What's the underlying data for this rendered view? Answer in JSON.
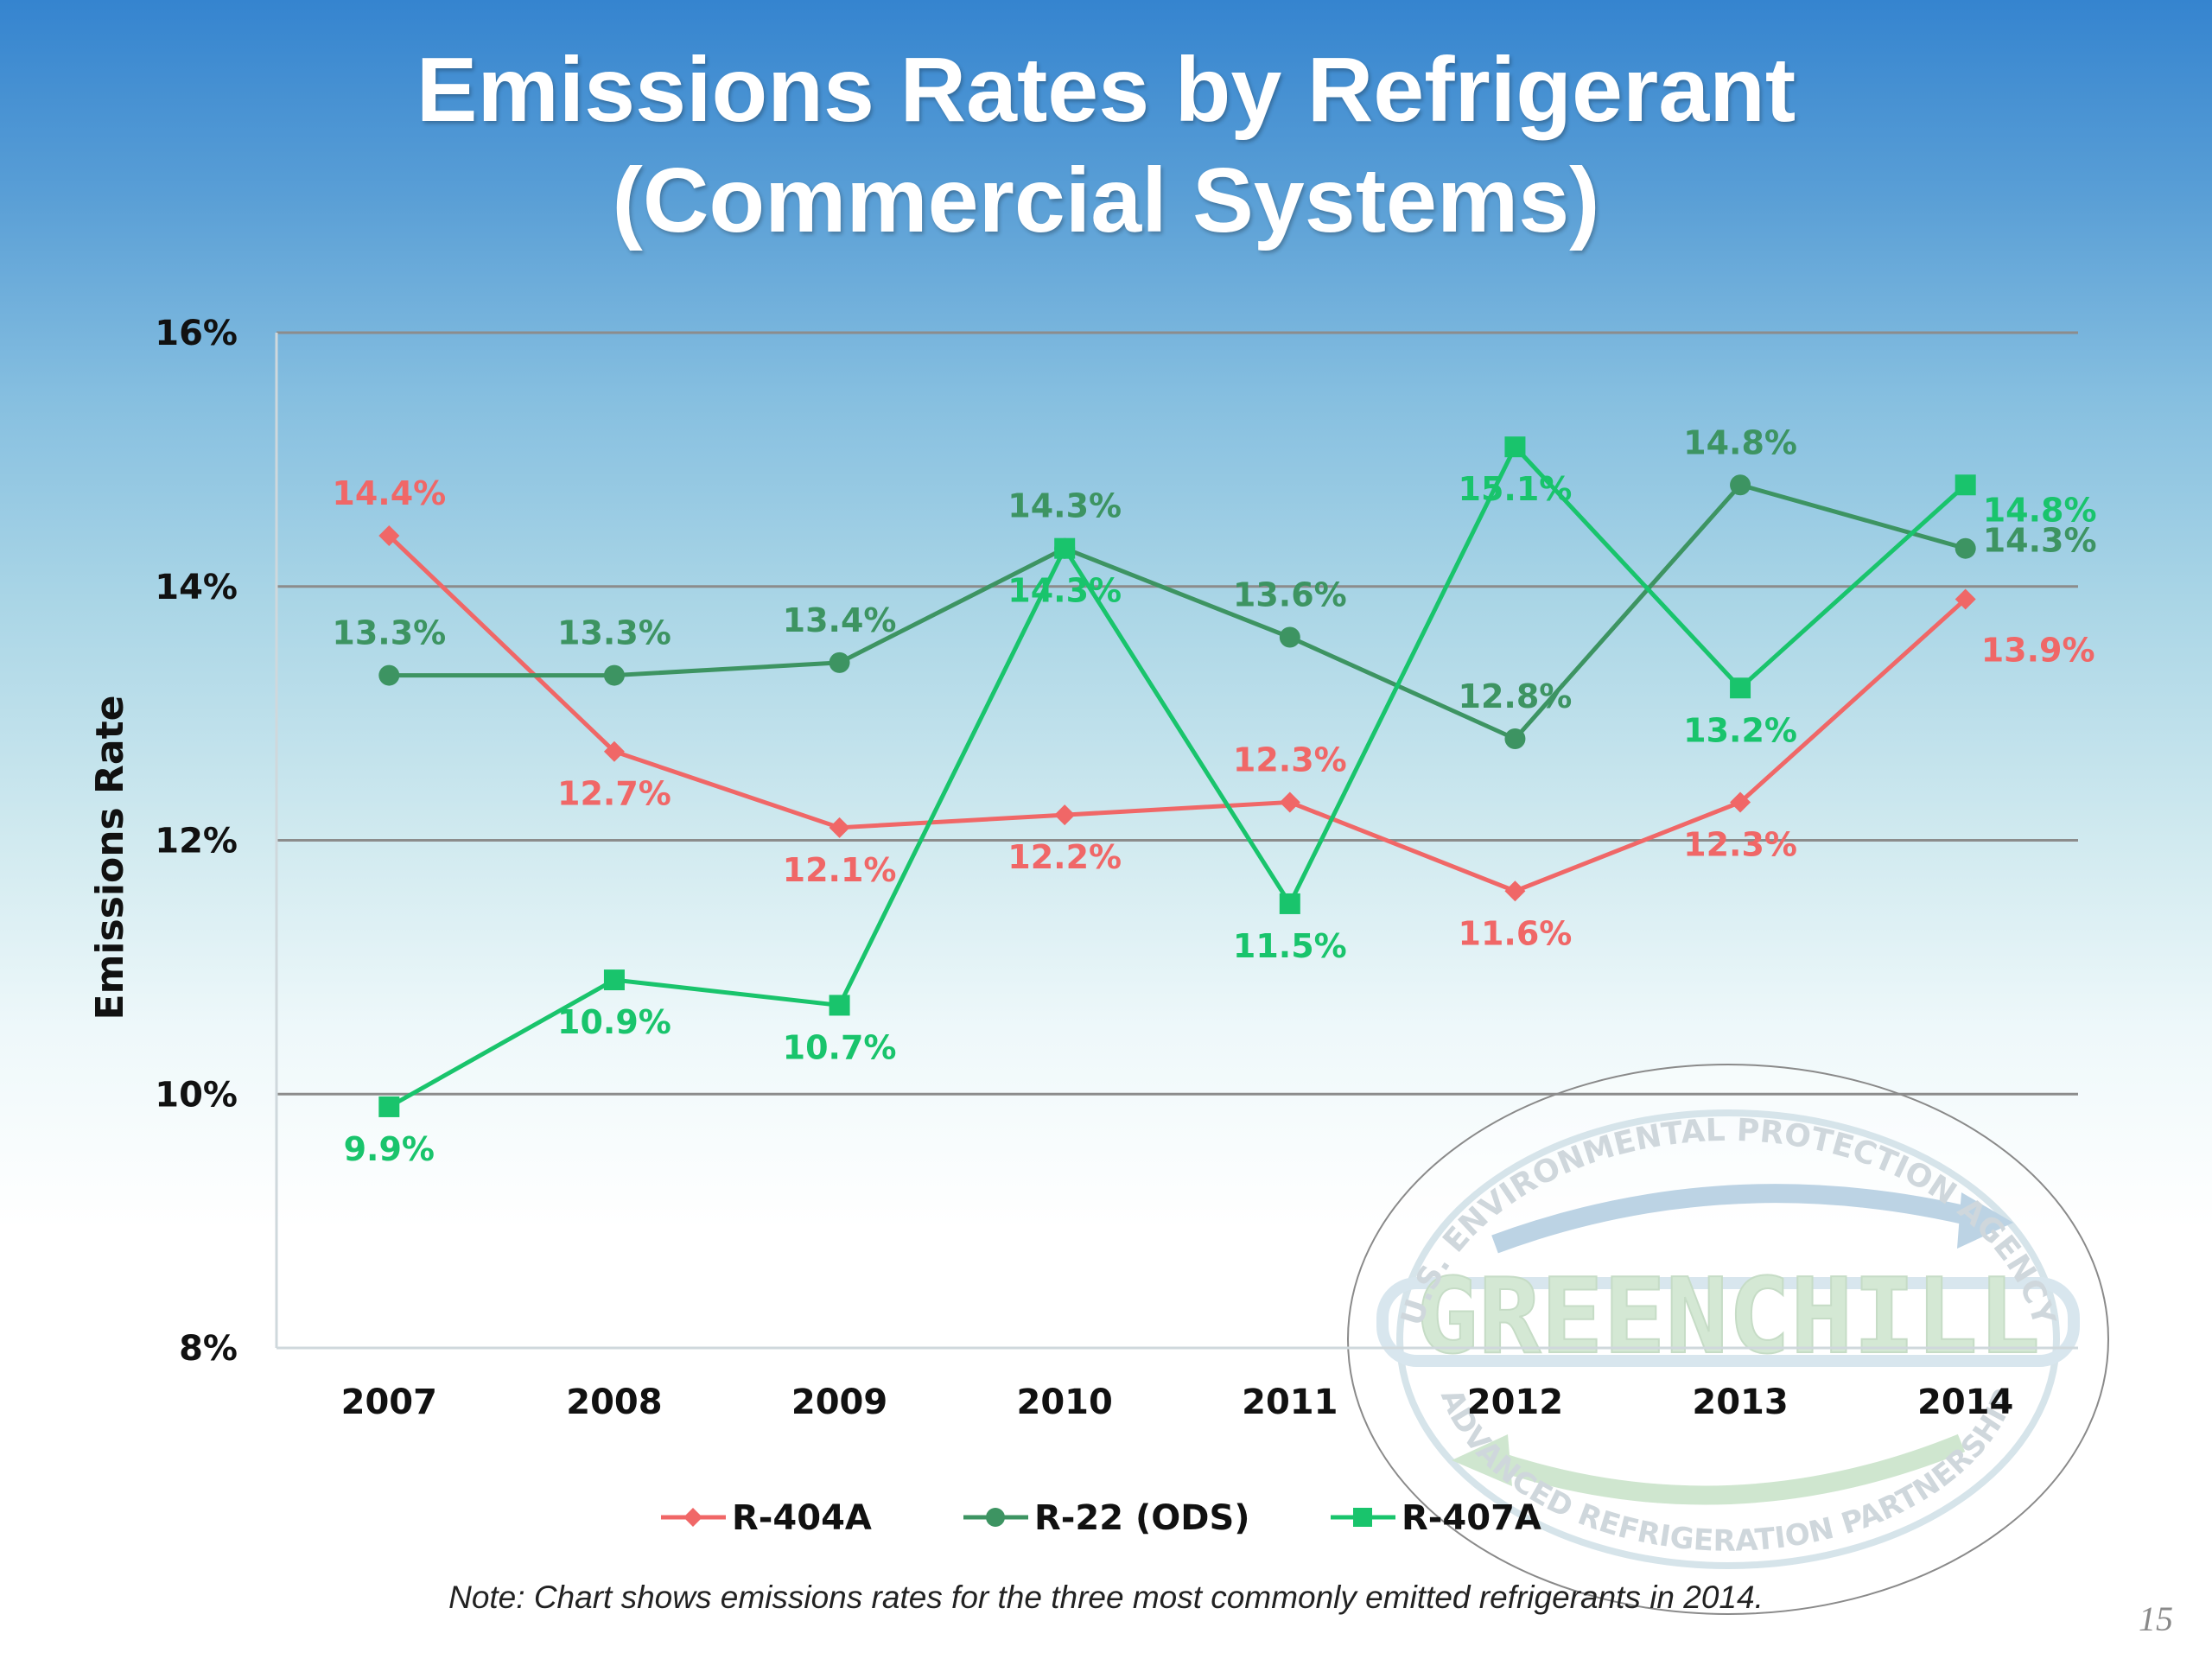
{
  "slide": {
    "title_line1": "Emissions Rates by Refrigerant",
    "title_line2": "(Commercial Systems)",
    "note": "Note: Chart shows emissions rates for the three most commonly emitted refrigerants in 2014.",
    "page_number": "15"
  },
  "watermark": {
    "top_arc_text": "U.S. ENVIRONMENTAL PROTECTION AGENCY",
    "logo_text": "GREENCHILL",
    "bottom_arc_text": "ADVANCED REFRIGERATION PARTNERSHIP"
  },
  "chart_data": {
    "type": "line",
    "title": "",
    "xlabel": "",
    "ylabel": "Emissions Rate",
    "categories": [
      "2007",
      "2008",
      "2009",
      "2010",
      "2011",
      "2012",
      "2013",
      "2014"
    ],
    "ylim": [
      8,
      16
    ],
    "yticks": [
      8,
      10,
      12,
      14,
      16
    ],
    "ytick_labels": [
      "8%",
      "10%",
      "12%",
      "14%",
      "16%"
    ],
    "grid": true,
    "legend_position": "bottom",
    "series": [
      {
        "name": "R-404A",
        "marker": "diamond",
        "color": "#f06767",
        "values": [
          14.4,
          12.7,
          12.1,
          12.2,
          12.3,
          11.6,
          12.3,
          13.9
        ],
        "labels": [
          "14.4%",
          "12.7%",
          "12.1%",
          "12.2%",
          "12.3%",
          "11.6%",
          "12.3%",
          "13.9%"
        ]
      },
      {
        "name": "R-22 (ODS)",
        "marker": "circle",
        "color": "#3d9462",
        "values": [
          13.3,
          13.3,
          13.4,
          14.3,
          13.6,
          12.8,
          14.8,
          14.3
        ],
        "labels": [
          "13.3%",
          "13.3%",
          "13.4%",
          "14.3%",
          "13.6%",
          "12.8%",
          "14.8%",
          "14.3%"
        ]
      },
      {
        "name": "R-407A",
        "marker": "square",
        "color": "#19c46c",
        "values": [
          9.9,
          10.9,
          10.7,
          14.3,
          11.5,
          15.1,
          13.2,
          14.8
        ],
        "labels": [
          "9.9%",
          "10.9%",
          "10.7%",
          "14.3%",
          "11.5%",
          "15.1%",
          "13.2%",
          "14.8%"
        ]
      }
    ]
  }
}
